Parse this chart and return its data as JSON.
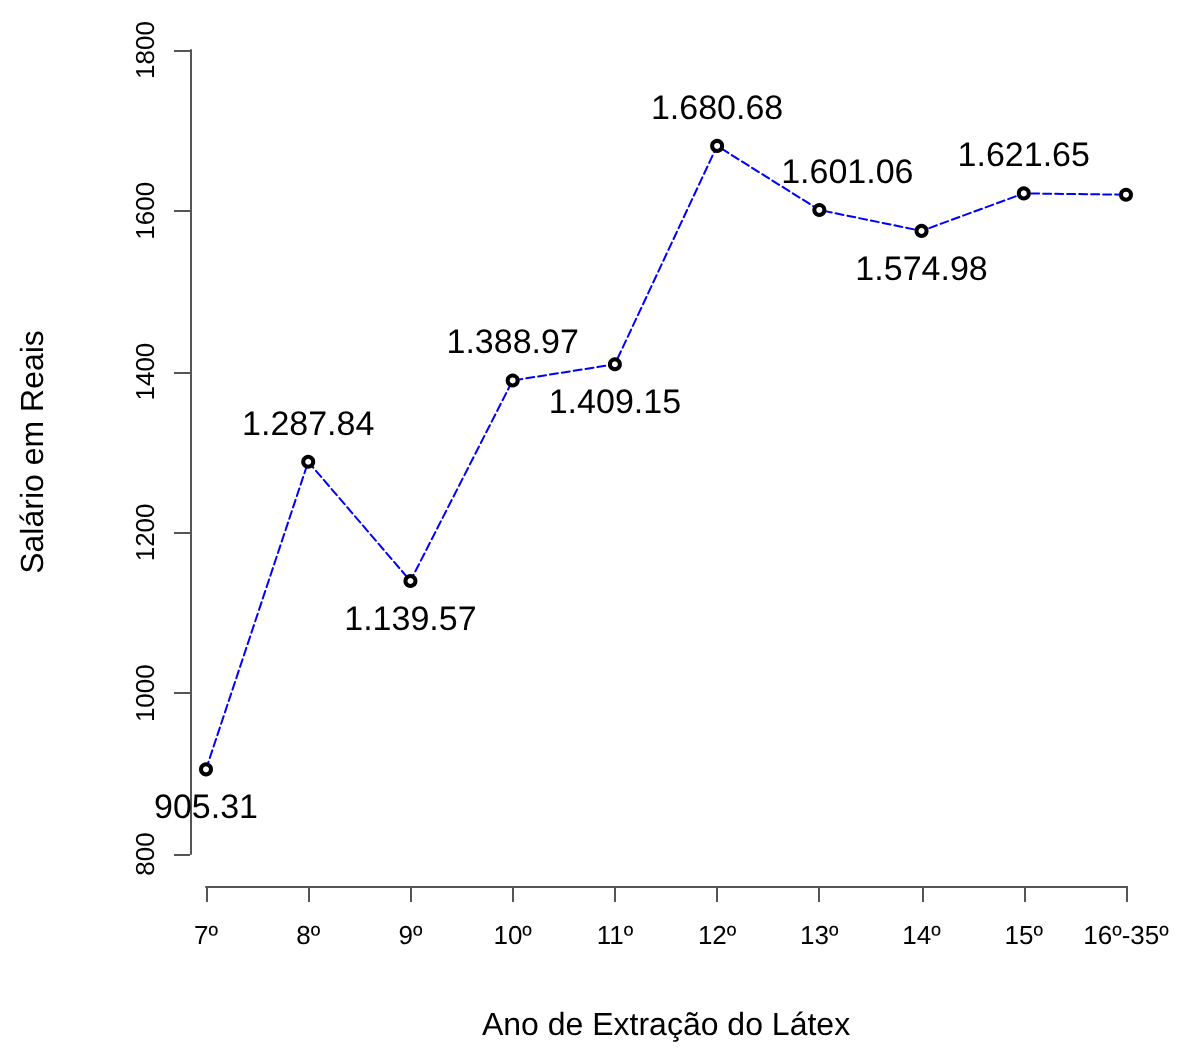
{
  "chart_data": {
    "type": "line",
    "xlabel": "Ano de Extração do Látex",
    "ylabel": "Salário em Reais",
    "categories": [
      "7º",
      "8º",
      "9º",
      "10º",
      "11º",
      "12º",
      "13º",
      "14º",
      "15º",
      "16º-35º"
    ],
    "series": [
      {
        "color": "#0000ff",
        "values": [
          905.31,
          1287.84,
          1139.57,
          1388.97,
          1409.15,
          1680.68,
          1601.06,
          1574.98,
          1621.65,
          1620
        ],
        "value_labels": [
          "905.31",
          "1.287.84",
          "1.139.57",
          "1.388.97",
          "1.409.15",
          "1.680.68",
          "1.601.06",
          "1.574.98",
          "1.621.65",
          null
        ]
      }
    ],
    "ylim": [
      800,
      1800
    ],
    "yticks": [
      800,
      1000,
      1200,
      1400,
      1600,
      1800
    ],
    "grid": false,
    "marker": "circle",
    "line_style": "dashed"
  }
}
